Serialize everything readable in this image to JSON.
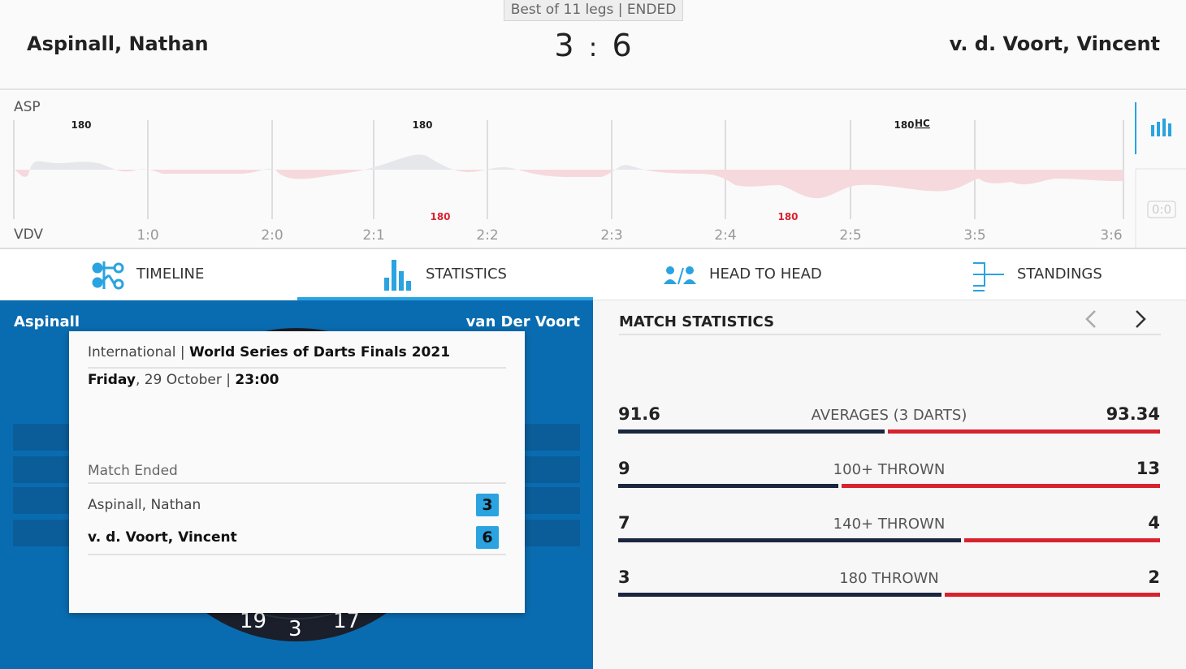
{
  "header": {
    "match_info": "Best of 11 legs | ENDED",
    "home_player": "Aspinall, Nathan",
    "score": {
      "home": 3,
      "separator": ":",
      "away": 6
    },
    "away_player": "v. d. Voort, Vincent"
  },
  "momentum": {
    "home_label": "ASP",
    "away_label": "VDV",
    "home_events": [
      "180",
      "180",
      "180"
    ],
    "home_event_tag": "HC",
    "away_events": [
      "180",
      "180"
    ],
    "legs": [
      "1:0",
      "2:0",
      "2:1",
      "2:2",
      "2:3",
      "2:4",
      "2:5",
      "3:5",
      "3:6"
    ],
    "current_score": "0:0"
  },
  "tabs": {
    "items": [
      "TIMELINE",
      "STATISTICS",
      "HEAD TO HEAD",
      "STANDINGS"
    ],
    "active": 1
  },
  "left_panel": {
    "home": "Aspinall",
    "away": "van Der Voort",
    "board_numbers": [
      "19",
      "3",
      "17"
    ],
    "match_card": {
      "category": "International",
      "category_separator": "|",
      "competition": "World Series of Darts Finals 2021",
      "day": "Friday",
      "date": ", 29 October |",
      "time": "23:00",
      "status": "Match Ended",
      "players": [
        {
          "name": "Aspinall, Nathan",
          "legs": 3,
          "winner": false
        },
        {
          "name": "v. d. Voort, Vincent",
          "legs": 6,
          "winner": true
        }
      ]
    }
  },
  "match_statistics": {
    "title": "MATCH STATISTICS",
    "home_color": "#1b2740",
    "away_color": "#d8232f",
    "rows": [
      {
        "label": "AVERAGES (3 DARTS)",
        "home": 91.6,
        "away": 93.34
      },
      {
        "label": "100+ THROWN",
        "home": 9,
        "away": 13
      },
      {
        "label": "140+ THROWN",
        "home": 7,
        "away": 4
      },
      {
        "label": "180 THROWN",
        "home": 3,
        "away": 2
      }
    ]
  }
}
